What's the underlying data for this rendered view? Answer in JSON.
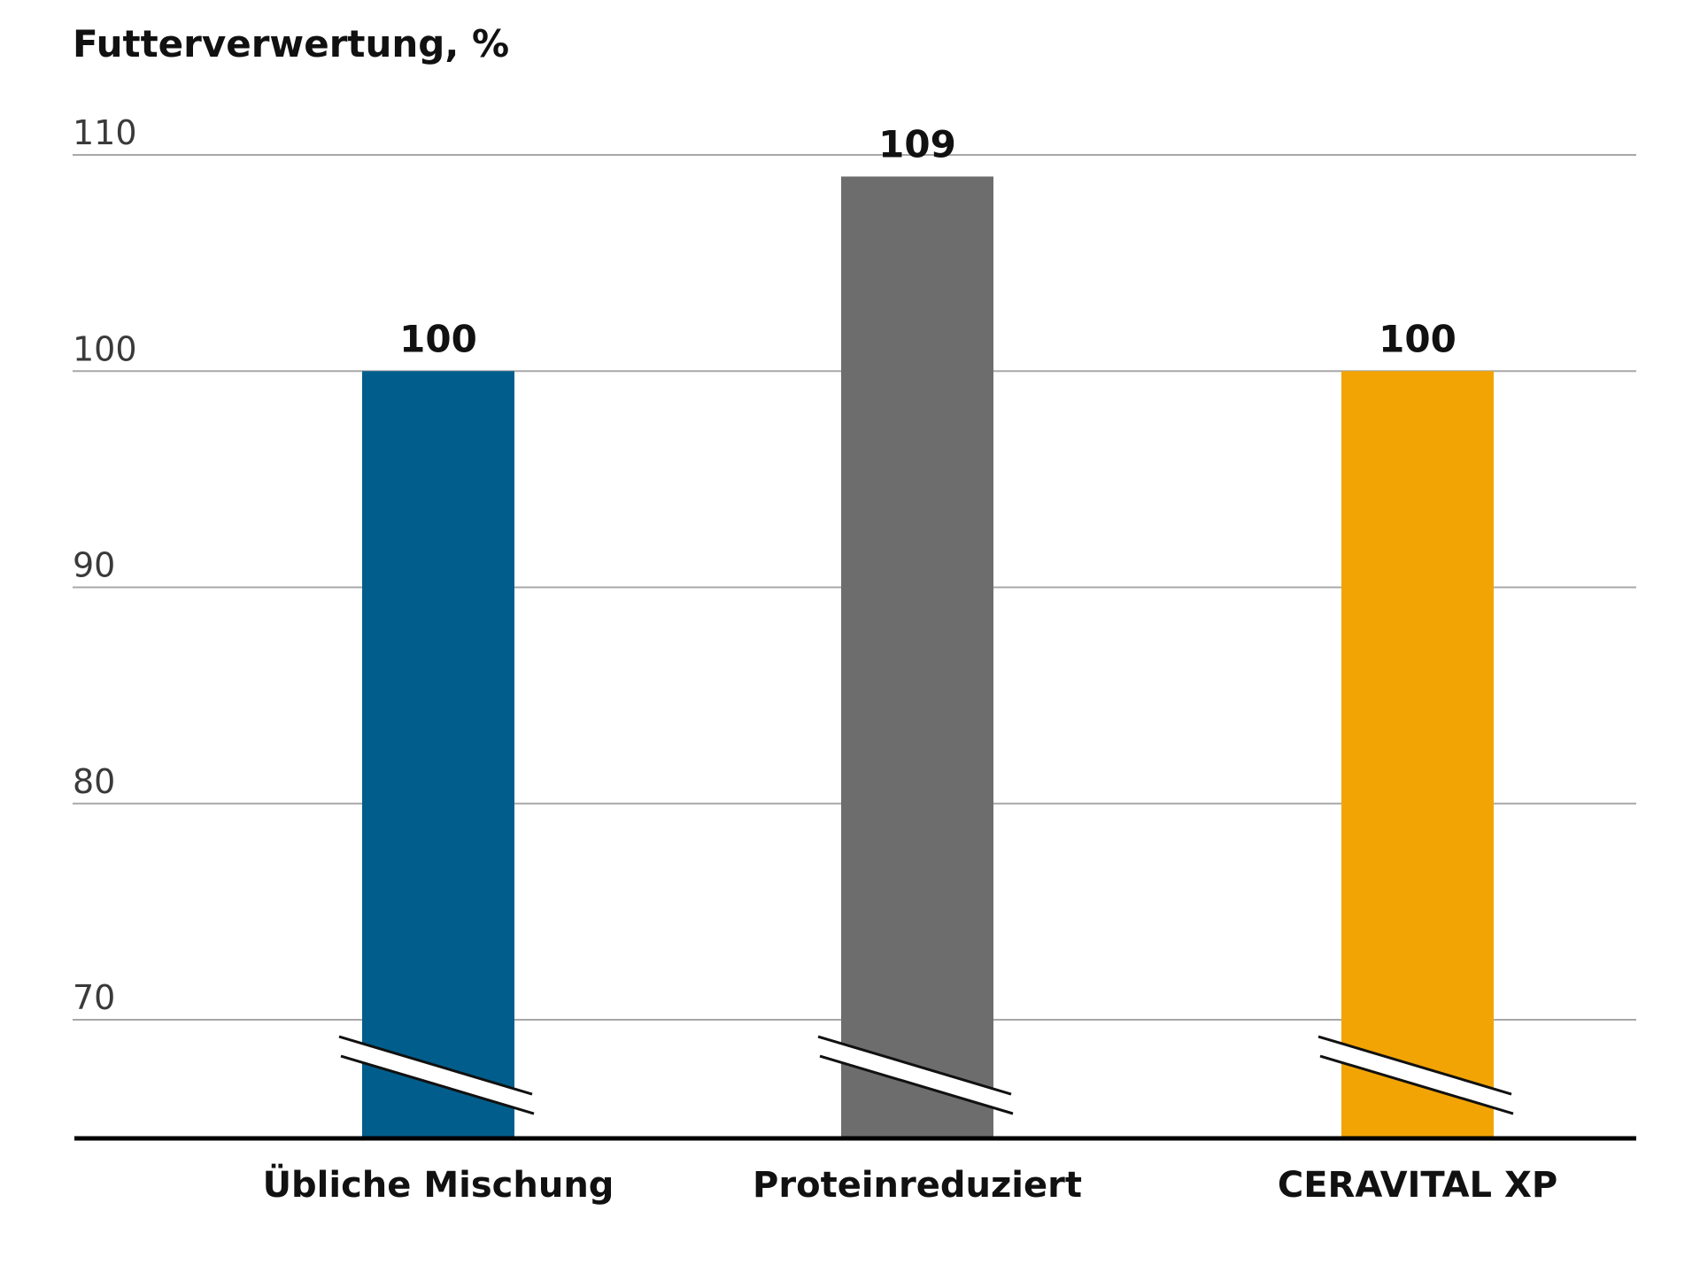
{
  "chart_data": {
    "type": "bar",
    "title": "Futterverwertung, %",
    "xlabel": "",
    "ylabel": "",
    "categories": [
      "Übliche Mischung",
      "Proteinreduziert",
      "CERAVITAL XP"
    ],
    "values": [
      100,
      109,
      100
    ],
    "value_labels": [
      "100",
      "109",
      "100"
    ],
    "colors": [
      "#015e8c",
      "#6d6d6d",
      "#f2a404"
    ],
    "yticks": [
      "70",
      "80",
      "90",
      "100",
      "110"
    ],
    "ylim": [
      70,
      110
    ],
    "axis_break": true,
    "grid": true,
    "legend": "none",
    "colors_theme": {
      "gridline": "#a8a8a8",
      "baseline": "#000000",
      "break_mark": "#111111"
    }
  }
}
